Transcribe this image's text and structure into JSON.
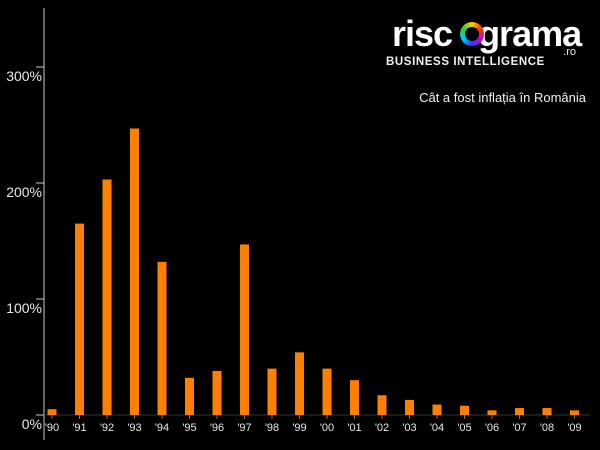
{
  "brand": {
    "wordmark_before": "risc",
    "wordmark_after": "grama",
    "suffix": ".ro",
    "tagline": "BUSINESS INTELLIGENCE"
  },
  "chart_data": {
    "type": "bar",
    "title": "Cât a fost inflația în România",
    "xlabel": "",
    "ylabel": "",
    "categories": [
      "'90",
      "'91",
      "'92",
      "'93",
      "'94",
      "'95",
      "'96",
      "'97",
      "'98",
      "'99",
      "'00",
      "'01",
      "'02",
      "'03",
      "'04",
      "'05",
      "'06",
      "'07",
      "'08",
      "'09"
    ],
    "values": [
      5,
      165,
      203,
      247,
      132,
      32,
      38,
      147,
      40,
      54,
      40,
      30,
      17,
      13,
      9,
      8,
      4,
      6,
      6,
      4
    ],
    "ylim": [
      0,
      330
    ],
    "yticks": [
      0,
      100,
      200,
      300
    ],
    "ytick_labels": [
      "0%",
      "100%",
      "200%",
      "300%"
    ],
    "grid": false,
    "legend": "none",
    "colors": {
      "bar": "#ff7f00",
      "background": "#000000",
      "axis": "#cccccc",
      "text": "#e8e8e8"
    }
  }
}
